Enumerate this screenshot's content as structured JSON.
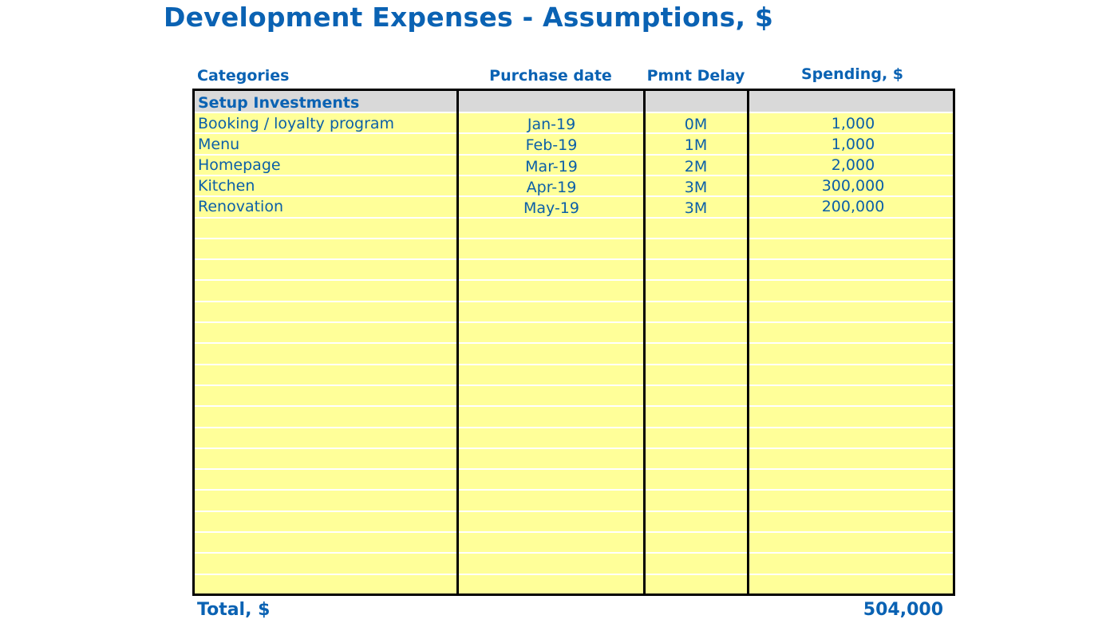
{
  "title": "Development Expenses - Assumptions, $",
  "headers": {
    "categories": "Categories",
    "purchase_date": "Purchase date",
    "pmnt_delay": "Pmnt Delay",
    "spending": "Spending, $"
  },
  "section": {
    "label": "Setup Investments"
  },
  "rows": [
    {
      "category": "Booking / loyalty program",
      "purchase_date": "Jan-19",
      "delay": "0M",
      "spending": "1,000"
    },
    {
      "category": "Menu",
      "purchase_date": "Feb-19",
      "delay": "1M",
      "spending": "1,000"
    },
    {
      "category": "Homepage",
      "purchase_date": "Mar-19",
      "delay": "2M",
      "spending": "2,000"
    },
    {
      "category": "Kitchen",
      "purchase_date": "Apr-19",
      "delay": "3M",
      "spending": "300,000"
    },
    {
      "category": "Renovation",
      "purchase_date": "May-19",
      "delay": "3M",
      "spending": "200,000"
    }
  ],
  "total": {
    "label": "Total, $",
    "value": "504,000"
  },
  "colors": {
    "text": "#0b5fa8",
    "input_fill": "#ffff99",
    "section_fill": "#d9d9d9",
    "border": "#000000"
  }
}
